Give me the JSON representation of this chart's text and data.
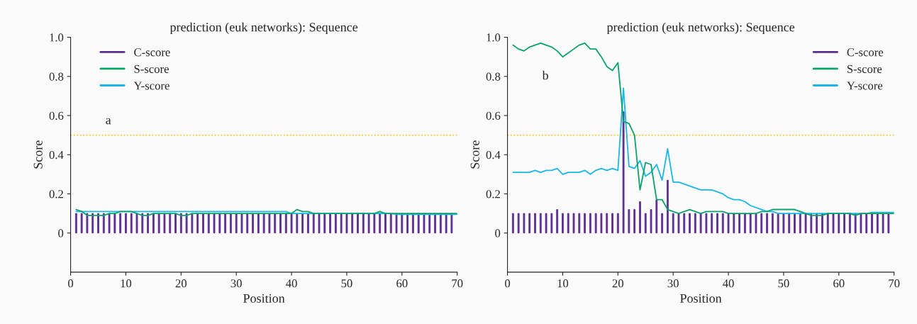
{
  "chart_data": [
    {
      "type": "line",
      "title": "prediction (euk networks): Sequence",
      "xlabel": "Position",
      "ylabel": "Score",
      "x": [
        1,
        2,
        3,
        4,
        5,
        6,
        7,
        8,
        9,
        10,
        11,
        12,
        13,
        14,
        15,
        16,
        17,
        18,
        19,
        20,
        21,
        22,
        23,
        24,
        25,
        26,
        27,
        28,
        29,
        30,
        31,
        32,
        33,
        34,
        35,
        36,
        37,
        38,
        39,
        40,
        41,
        42,
        43,
        44,
        45,
        46,
        47,
        48,
        49,
        50,
        51,
        52,
        53,
        54,
        55,
        56,
        57,
        58,
        59,
        60,
        61,
        62,
        63,
        64,
        65,
        66,
        67,
        68,
        69,
        70
      ],
      "series": [
        {
          "name": "C-score",
          "type": "bar",
          "color": "#5b2c8f",
          "values": [
            0.1,
            0.1,
            0.1,
            0.1,
            0.1,
            0.1,
            0.1,
            0.1,
            0.1,
            0.1,
            0.1,
            0.1,
            0.1,
            0.1,
            0.1,
            0.1,
            0.1,
            0.1,
            0.1,
            0.1,
            0.1,
            0.1,
            0.1,
            0.1,
            0.1,
            0.1,
            0.1,
            0.1,
            0.1,
            0.1,
            0.1,
            0.1,
            0.1,
            0.1,
            0.1,
            0.1,
            0.1,
            0.1,
            0.1,
            0.1,
            0.1,
            0.1,
            0.1,
            0.1,
            0.1,
            0.1,
            0.1,
            0.1,
            0.1,
            0.1,
            0.1,
            0.1,
            0.1,
            0.1,
            0.1,
            0.1,
            0.1,
            0.1,
            0.1,
            0.1,
            0.1,
            0.1,
            0.1,
            0.1,
            0.1,
            0.1,
            0.1,
            0.1,
            0.1,
            null
          ]
        },
        {
          "name": "S-score",
          "color": "#0aa36a",
          "values": [
            0.12,
            0.11,
            0.09,
            0.09,
            0.09,
            0.09,
            0.1,
            0.1,
            0.11,
            0.11,
            0.11,
            0.1,
            0.09,
            0.09,
            0.1,
            0.1,
            0.1,
            0.1,
            0.1,
            0.09,
            0.09,
            0.1,
            0.1,
            0.1,
            0.1,
            0.1,
            0.1,
            0.1,
            0.1,
            0.1,
            0.1,
            0.1,
            0.1,
            0.1,
            0.1,
            0.1,
            0.1,
            0.1,
            0.1,
            0.1,
            0.12,
            0.11,
            0.11,
            0.1,
            0.1,
            0.1,
            0.1,
            0.1,
            0.1,
            0.1,
            0.1,
            0.1,
            0.1,
            0.1,
            0.1,
            0.11,
            0.1,
            0.1,
            0.1,
            0.1,
            0.1,
            0.1,
            0.1,
            0.1,
            0.1,
            0.1,
            0.1,
            0.1,
            0.1,
            0.1
          ]
        },
        {
          "name": "Y-score",
          "color": "#1ab8e8",
          "values": [
            0.11,
            0.11,
            0.11,
            0.11,
            0.11,
            0.11,
            0.11,
            0.11,
            0.11,
            0.11,
            0.11,
            0.11,
            0.11,
            0.11,
            0.11,
            0.11,
            0.11,
            0.11,
            0.11,
            0.11,
            0.11,
            0.11,
            0.11,
            0.11,
            0.11,
            0.11,
            0.11,
            0.11,
            0.11,
            0.11,
            0.11,
            0.11,
            0.11,
            0.11,
            0.11,
            0.11,
            0.11,
            0.11,
            0.11,
            0.1,
            0.1,
            0.1,
            0.1,
            0.1,
            0.1,
            0.1,
            0.1,
            0.1,
            0.1,
            0.1,
            0.1,
            0.1,
            0.1,
            0.1,
            0.1,
            0.1,
            0.1,
            0.1,
            0.095,
            0.095,
            0.095,
            0.095,
            0.095,
            0.095,
            0.095,
            0.095,
            0.095,
            0.095,
            0.095,
            0.095
          ]
        }
      ],
      "ref_lines": [
        {
          "axis": "y",
          "value": 0.5,
          "color": "#f5c518",
          "line_style": "dotted"
        }
      ],
      "annotations": [
        "a"
      ],
      "xlim": [
        0,
        70
      ],
      "xticks": [
        0,
        10,
        20,
        30,
        40,
        50,
        60,
        70
      ],
      "ylim": [
        -0.2,
        1.0
      ],
      "yticks": [
        0,
        0.2,
        0.4,
        0.6,
        0.8,
        {
          "value": 1.0,
          "label": "1.0"
        }
      ],
      "legend": "top left",
      "grid": false
    },
    {
      "type": "line",
      "title": "prediction (euk networks): Sequence",
      "xlabel": "Position",
      "ylabel": "Score",
      "x": [
        1,
        2,
        3,
        4,
        5,
        6,
        7,
        8,
        9,
        10,
        11,
        12,
        13,
        14,
        15,
        16,
        17,
        18,
        19,
        20,
        21,
        22,
        23,
        24,
        25,
        26,
        27,
        28,
        29,
        30,
        31,
        32,
        33,
        34,
        35,
        36,
        37,
        38,
        39,
        40,
        41,
        42,
        43,
        44,
        45,
        46,
        47,
        48,
        49,
        50,
        51,
        52,
        53,
        54,
        55,
        56,
        57,
        58,
        59,
        60,
        61,
        62,
        63,
        64,
        65,
        66,
        67,
        68,
        69,
        70
      ],
      "series": [
        {
          "name": "C-score",
          "type": "bar",
          "color": "#5b2c8f",
          "values": [
            0.1,
            0.1,
            0.1,
            0.1,
            0.1,
            0.1,
            0.1,
            0.1,
            0.12,
            0.1,
            0.1,
            0.1,
            0.1,
            0.1,
            0.1,
            0.1,
            0.1,
            0.1,
            0.1,
            0.1,
            0.62,
            0.12,
            0.12,
            0.16,
            0.1,
            0.12,
            0.17,
            0.1,
            0.27,
            0.1,
            0.1,
            0.1,
            0.1,
            0.1,
            0.1,
            0.1,
            0.1,
            0.1,
            0.1,
            0.1,
            0.1,
            0.1,
            0.1,
            0.1,
            0.1,
            0.1,
            0.1,
            0.1,
            0.1,
            0.1,
            0.1,
            0.1,
            0.1,
            0.1,
            0.1,
            0.1,
            0.1,
            0.1,
            0.1,
            0.1,
            0.1,
            0.1,
            0.1,
            0.1,
            0.1,
            0.1,
            0.1,
            0.1,
            0.1,
            null
          ]
        },
        {
          "name": "S-score",
          "color": "#0aa36a",
          "values": [
            0.96,
            0.94,
            0.93,
            0.95,
            0.96,
            0.97,
            0.96,
            0.95,
            0.93,
            0.9,
            0.92,
            0.94,
            0.96,
            0.97,
            0.94,
            0.94,
            0.9,
            0.85,
            0.83,
            0.87,
            0.57,
            0.56,
            0.5,
            0.22,
            0.36,
            0.35,
            0.17,
            0.17,
            0.12,
            0.11,
            0.1,
            0.11,
            0.12,
            0.11,
            0.1,
            0.11,
            0.11,
            0.11,
            0.11,
            0.1,
            0.1,
            0.1,
            0.1,
            0.1,
            0.1,
            0.11,
            0.11,
            0.12,
            0.12,
            0.12,
            0.12,
            0.12,
            0.11,
            0.1,
            0.09,
            0.09,
            0.09,
            0.1,
            0.1,
            0.1,
            0.1,
            0.1,
            0.09,
            0.1,
            0.1,
            0.1,
            0.1,
            0.1,
            0.1,
            0.1
          ]
        },
        {
          "name": "Y-score",
          "color": "#1ab8e8",
          "values": [
            0.31,
            0.31,
            0.31,
            0.31,
            0.32,
            0.31,
            0.32,
            0.32,
            0.33,
            0.3,
            0.31,
            0.31,
            0.31,
            0.32,
            0.3,
            0.32,
            0.33,
            0.32,
            0.33,
            0.32,
            0.74,
            0.34,
            0.33,
            0.37,
            0.29,
            0.31,
            0.35,
            0.27,
            0.43,
            0.26,
            0.26,
            0.25,
            0.24,
            0.23,
            0.22,
            0.22,
            0.22,
            0.21,
            0.2,
            0.18,
            0.17,
            0.17,
            0.16,
            0.14,
            0.13,
            0.12,
            0.11,
            0.11,
            0.1,
            0.1,
            0.1,
            0.1,
            0.1,
            0.1,
            0.1,
            0.1,
            0.1,
            0.1,
            0.1,
            0.1,
            0.1,
            0.1,
            0.1,
            0.1,
            0.1,
            0.105,
            0.105,
            0.105,
            0.105,
            0.105
          ]
        }
      ],
      "ref_lines": [
        {
          "axis": "y",
          "value": 0.5,
          "color": "#f5c518",
          "line_style": "dotted"
        }
      ],
      "annotations": [
        "b"
      ],
      "xlim": [
        0,
        70
      ],
      "xticks": [
        0,
        10,
        20,
        30,
        40,
        50,
        60,
        70
      ],
      "ylim": [
        -0.2,
        1.0
      ],
      "yticks": [
        0,
        0.2,
        0.4,
        0.6,
        0.8,
        {
          "value": 1.0,
          "label": "1.0"
        }
      ],
      "legend": "top right",
      "grid": false
    }
  ]
}
